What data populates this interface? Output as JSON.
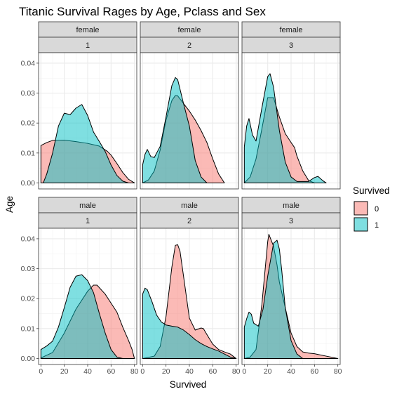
{
  "chart_data": {
    "type": "area",
    "title": "Titanic Survival Rages by Age, Pclass and Sex",
    "xlabel": "Survived",
    "ylabel": "Age",
    "xlim": [
      -2,
      82
    ],
    "ylim": [
      -0.002,
      0.0435
    ],
    "x_ticks": [
      0,
      20,
      40,
      60,
      80
    ],
    "y_ticks": [
      0.0,
      0.01,
      0.02,
      0.03,
      0.04
    ],
    "y_tick_labels": [
      "0.00",
      "0.01",
      "0.02",
      "0.03",
      "0.04"
    ],
    "grid": true,
    "legend": {
      "title": "Survived",
      "position": "right",
      "entries": [
        {
          "label": "0",
          "color": "#F8766D"
        },
        {
          "label": "1",
          "color": "#00BFC4"
        }
      ]
    },
    "facets": [
      {
        "sex": "female",
        "pclass": "1",
        "series": [
          {
            "label": "0",
            "x": [
              0,
              5,
              10,
              20,
              30,
              40,
              50,
              57,
              60,
              65,
              70,
              75,
              80
            ],
            "y": [
              0.0125,
              0.0135,
              0.0142,
              0.0143,
              0.0138,
              0.0132,
              0.0123,
              0.0105,
              0.0093,
              0.0065,
              0.0035,
              0.0012,
              0.0
            ]
          },
          {
            "label": "1",
            "x": [
              2,
              5,
              10,
              15,
              20,
              25,
              30,
              35,
              40,
              45,
              50,
              55,
              60,
              65,
              70,
              75
            ],
            "y": [
              0.0,
              0.003,
              0.01,
              0.019,
              0.0233,
              0.0228,
              0.025,
              0.0262,
              0.0225,
              0.017,
              0.0138,
              0.0105,
              0.006,
              0.0025,
              0.0006,
              0.0
            ]
          }
        ]
      },
      {
        "sex": "female",
        "pclass": "2",
        "series": [
          {
            "label": "0",
            "x": [
              0,
              5,
              10,
              15,
              20,
              25,
              28,
              30,
              35,
              40,
              45,
              50,
              55,
              60,
              65,
              70
            ],
            "y": [
              0.0,
              0.001,
              0.004,
              0.011,
              0.021,
              0.0275,
              0.0292,
              0.0291,
              0.0265,
              0.024,
              0.021,
              0.0175,
              0.0135,
              0.008,
              0.003,
              0.0
            ]
          },
          {
            "label": "1",
            "x": [
              0,
              2,
              4,
              7,
              10,
              15,
              20,
              25,
              28,
              30,
              35,
              40,
              45,
              50,
              55
            ],
            "y": [
              0.006,
              0.0095,
              0.0112,
              0.0088,
              0.0085,
              0.0122,
              0.022,
              0.0325,
              0.0352,
              0.0345,
              0.0265,
              0.019,
              0.0075,
              0.002,
              0.0
            ]
          }
        ]
      },
      {
        "sex": "female",
        "pclass": "3",
        "series": [
          {
            "label": "0",
            "x": [
              0,
              5,
              10,
              15,
              20,
              25,
              30,
              35,
              40,
              43,
              45,
              50,
              55,
              60
            ],
            "y": [
              0.0,
              0.002,
              0.008,
              0.018,
              0.0285,
              0.0285,
              0.022,
              0.0165,
              0.0135,
              0.0118,
              0.009,
              0.004,
              0.0008,
              0.0
            ]
          },
          {
            "label": "1",
            "x": [
              0,
              2,
              4,
              7,
              10,
              15,
              20,
              22,
              25,
              30,
              35,
              40,
              45,
              55,
              60,
              63,
              67,
              70
            ],
            "y": [
              0.012,
              0.019,
              0.0215,
              0.016,
              0.014,
              0.025,
              0.0355,
              0.0365,
              0.032,
              0.0175,
              0.007,
              0.002,
              0.0005,
              0.0005,
              0.0018,
              0.0022,
              0.0008,
              0.0
            ]
          }
        ]
      },
      {
        "sex": "male",
        "pclass": "1",
        "series": [
          {
            "label": "0",
            "x": [
              0,
              10,
              20,
              30,
              40,
              45,
              48,
              55,
              60,
              65,
              70,
              75,
              78,
              80
            ],
            "y": [
              0.0002,
              0.002,
              0.0085,
              0.0165,
              0.0225,
              0.0245,
              0.0245,
              0.0215,
              0.0185,
              0.0155,
              0.0105,
              0.006,
              0.003,
              0.0
            ]
          },
          {
            "label": "1",
            "x": [
              0,
              5,
              10,
              15,
              20,
              25,
              30,
              35,
              40,
              45,
              50,
              55,
              60,
              65,
              70
            ],
            "y": [
              0.003,
              0.0042,
              0.0058,
              0.0105,
              0.017,
              0.0238,
              0.0275,
              0.028,
              0.026,
              0.022,
              0.015,
              0.0085,
              0.003,
              0.0005,
              0.0
            ]
          }
        ]
      },
      {
        "sex": "male",
        "pclass": "2",
        "series": [
          {
            "label": "0",
            "x": [
              0,
              10,
              15,
              20,
              25,
              28,
              30,
              32,
              35,
              40,
              45,
              50,
              52,
              55,
              60,
              65,
              70,
              75,
              80
            ],
            "y": [
              0.0,
              0.0008,
              0.004,
              0.014,
              0.0305,
              0.0378,
              0.038,
              0.0358,
              0.0275,
              0.0135,
              0.0095,
              0.0102,
              0.01,
              0.008,
              0.0048,
              0.003,
              0.0022,
              0.0015,
              0.0
            ]
          },
          {
            "label": "1",
            "x": [
              0,
              2,
              4,
              8,
              12,
              16,
              20,
              25,
              30,
              35,
              40,
              45,
              50,
              55,
              60,
              65,
              70,
              75,
              80
            ],
            "y": [
              0.0215,
              0.0235,
              0.023,
              0.019,
              0.0145,
              0.0122,
              0.0112,
              0.0108,
              0.0105,
              0.0095,
              0.008,
              0.0063,
              0.005,
              0.004,
              0.0032,
              0.0025,
              0.0015,
              0.0005,
              0.0
            ]
          }
        ]
      },
      {
        "sex": "male",
        "pclass": "3",
        "series": [
          {
            "label": "0",
            "x": [
              0,
              5,
              10,
              15,
              20,
              21,
              25,
              28,
              30,
              35,
              40,
              45,
              50,
              55,
              60,
              65,
              70,
              75,
              80
            ],
            "y": [
              0.0,
              0.0005,
              0.003,
              0.018,
              0.039,
              0.0415,
              0.0375,
              0.0312,
              0.0255,
              0.017,
              0.0085,
              0.004,
              0.0022,
              0.0018,
              0.0016,
              0.0012,
              0.0008,
              0.0004,
              0.0
            ]
          },
          {
            "label": "1",
            "x": [
              0,
              2,
              4,
              6,
              8,
              12,
              16,
              20,
              25,
              28,
              30,
              32,
              35,
              40,
              45,
              50
            ],
            "y": [
              0.0105,
              0.0133,
              0.0155,
              0.0148,
              0.0118,
              0.0108,
              0.0165,
              0.0275,
              0.0385,
              0.0395,
              0.0365,
              0.0295,
              0.017,
              0.006,
              0.0015,
              0.0
            ]
          }
        ]
      }
    ]
  }
}
